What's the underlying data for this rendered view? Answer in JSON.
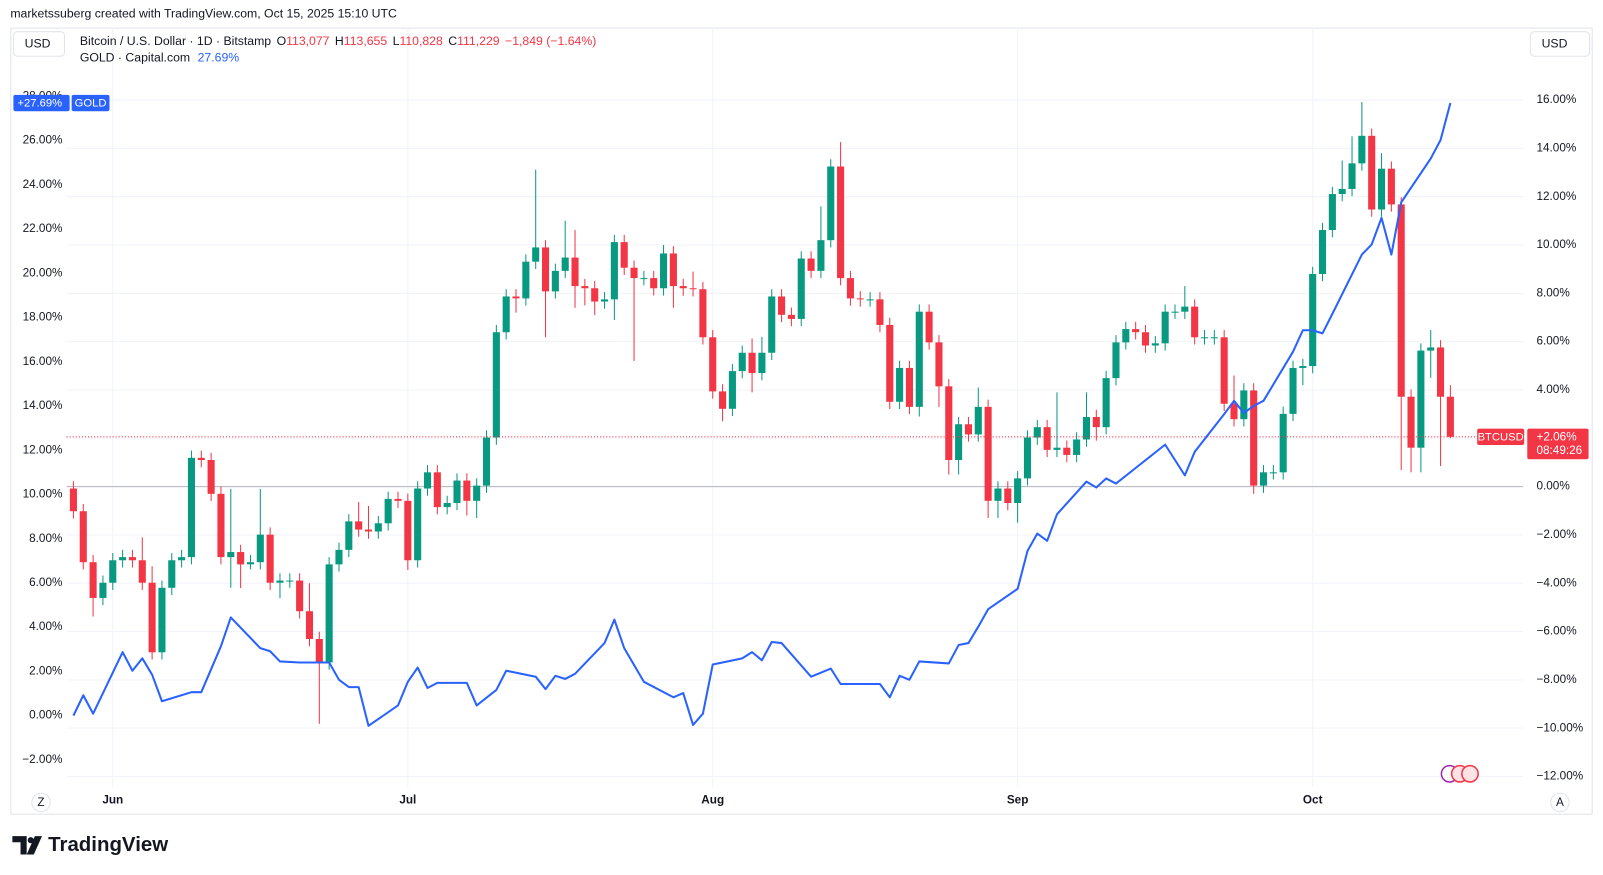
{
  "header": {
    "text": "marketssuberg created with TradingView.com, Oct 15, 2025 15:10 UTC"
  },
  "toolbar": {
    "left_currency": "USD",
    "right_currency": "USD",
    "zoom_button": "Z",
    "auto_button": "A"
  },
  "footer": {
    "logo": "TradingView"
  },
  "chart_data": {
    "type": "candlestick",
    "legend": {
      "title": "Bitcoin / U.S. Dollar · 1D · Bitstamp",
      "ohlc": [
        {
          "key": "O",
          "text": "113,077"
        },
        {
          "key": "H",
          "text": "113,655"
        },
        {
          "key": "L",
          "text": "110,828"
        },
        {
          "key": "C",
          "text": "111,229"
        }
      ],
      "change": "−1,849 (−1.64%)",
      "gold_title": "GOLD · Capital.com",
      "gold_value": "27.69%"
    },
    "xlim": [
      -0.7,
      147.4
    ],
    "xticks": [
      {
        "value": 4,
        "label": "Jun"
      },
      {
        "value": 34,
        "label": "Jul"
      },
      {
        "value": 65,
        "label": "Aug"
      },
      {
        "value": 96,
        "label": "Sep"
      },
      {
        "value": 126,
        "label": "Oct"
      }
    ],
    "ylim": [
      -12.44,
      19.0
    ],
    "yticks": [
      {
        "value": 16,
        "label": "16.00%"
      },
      {
        "value": 14,
        "label": "14.00%"
      },
      {
        "value": 12,
        "label": "12.00%"
      },
      {
        "value": 10,
        "label": "10.00%"
      },
      {
        "value": 8,
        "label": "8.00%"
      },
      {
        "value": 6,
        "label": "6.00%"
      },
      {
        "value": 4,
        "label": "4.00%"
      },
      {
        "value": 2,
        "label": "2.00%"
      },
      {
        "value": 0,
        "label": "0.00%"
      },
      {
        "value": -2,
        "label": "−2.00%"
      },
      {
        "value": -4,
        "label": "−4.00%"
      },
      {
        "value": -6,
        "label": "−6.00%"
      },
      {
        "value": -8,
        "label": "−8.00%"
      },
      {
        "value": -10,
        "label": "−10.00%"
      },
      {
        "value": -12,
        "label": "−12.00%"
      }
    ],
    "y2lim": [
      -3.23,
      31.1
    ],
    "y2ticks": [
      {
        "value": 28,
        "label": "28.00%"
      },
      {
        "value": 26,
        "label": "26.00%"
      },
      {
        "value": 24,
        "label": "24.00%"
      },
      {
        "value": 22,
        "label": "22.00%"
      },
      {
        "value": 20,
        "label": "20.00%"
      },
      {
        "value": 18,
        "label": "18.00%"
      },
      {
        "value": 16,
        "label": "16.00%"
      },
      {
        "value": 14,
        "label": "14.00%"
      },
      {
        "value": 12,
        "label": "12.00%"
      },
      {
        "value": 10,
        "label": "10.00%"
      },
      {
        "value": 8,
        "label": "8.00%"
      },
      {
        "value": 6,
        "label": "6.00%"
      },
      {
        "value": 4,
        "label": "4.00%"
      },
      {
        "value": 2,
        "label": "2.00%"
      },
      {
        "value": 0,
        "label": "0.00%"
      },
      {
        "value": -2,
        "label": "−2.00%"
      }
    ],
    "grid": true,
    "series": [
      {
        "name": "BTCUSD",
        "type": "candlestick",
        "up_color": "#089981",
        "down_color": "#f23645",
        "value_label": "+2.06%",
        "countdown": "08:49:26",
        "x": [
          0,
          1,
          2,
          3,
          4,
          5,
          6,
          7,
          8,
          9,
          10,
          11,
          12,
          13,
          14,
          15,
          16,
          17,
          18,
          19,
          20,
          21,
          22,
          23,
          24,
          25,
          26,
          27,
          28,
          29,
          30,
          31,
          32,
          33,
          34,
          35,
          36,
          37,
          38,
          39,
          40,
          41,
          42,
          43,
          44,
          45,
          46,
          47,
          48,
          49,
          50,
          51,
          52,
          53,
          54,
          55,
          56,
          57,
          58,
          59,
          60,
          61,
          62,
          63,
          64,
          65,
          66,
          67,
          68,
          69,
          70,
          71,
          72,
          73,
          74,
          75,
          76,
          77,
          78,
          79,
          80,
          81,
          82,
          83,
          84,
          85,
          86,
          87,
          88,
          89,
          90,
          91,
          92,
          93,
          94,
          95,
          96,
          97,
          98,
          99,
          100,
          101,
          102,
          103,
          104,
          105,
          106,
          107,
          108,
          109,
          110,
          111,
          112,
          113,
          114,
          115,
          116,
          117,
          118,
          119,
          120,
          121,
          122,
          123,
          124,
          125,
          126,
          127,
          128,
          129,
          130,
          131,
          132,
          133,
          134,
          135,
          136,
          137,
          138,
          139,
          140
        ],
        "open": [
          -0.08,
          -1.02,
          -3.13,
          -4.61,
          -3.98,
          -3.05,
          -2.92,
          -3.05,
          -3.98,
          -6.86,
          -4.19,
          -3.05,
          -2.92,
          1.19,
          1.1,
          -0.3,
          -2.92,
          -2.71,
          -3.22,
          -3.13,
          -1.99,
          -3.98,
          -3.89,
          -3.89,
          -5.16,
          -6.31,
          -7.28,
          -3.22,
          -2.62,
          -1.44,
          -1.78,
          -1.86,
          -1.52,
          -0.51,
          -0.59,
          -3.05,
          -0.08,
          0.59,
          -0.85,
          -0.68,
          0.25,
          -0.59,
          0.04,
          2.03,
          6.39,
          7.87,
          7.79,
          9.31,
          9.9,
          8.08,
          8.93,
          9.48,
          8.3,
          8.21,
          7.66,
          7.75,
          10.12,
          9.06,
          8.63,
          8.63,
          8.21,
          9.65,
          8.3,
          8.21,
          8.17,
          6.18,
          3.94,
          3.22,
          4.78,
          5.54,
          4.7,
          5.54,
          7.87,
          7.11,
          6.94,
          9.44,
          8.93,
          10.2,
          13.25,
          8.63,
          7.79,
          7.75,
          7.75,
          6.69,
          3.51,
          4.91,
          3.3,
          7.24,
          5.97,
          4.15,
          1.1,
          2.58,
          2.16,
          3.3,
          -0.59,
          -0.08,
          -0.68,
          0.34,
          2.03,
          2.46,
          1.52,
          1.61,
          1.31,
          1.95,
          2.88,
          2.46,
          4.49,
          5.97,
          6.52,
          6.39,
          5.84,
          5.93,
          7.24,
          7.24,
          7.45,
          6.18,
          6.18,
          6.18,
          3.43,
          2.79,
          3.98,
          0.04,
          0.59,
          0.59,
          3.01,
          4.91,
          4.99,
          8.8,
          10.62,
          12.11,
          12.32,
          13.38,
          14.52,
          11.47,
          13.16,
          11.68,
          3.72,
          1.61,
          5.63,
          5.76,
          3.72
        ],
        "high": [
          0.22,
          -0.72,
          -2.83,
          -3.68,
          -2.75,
          -2.62,
          -2.62,
          -2.1,
          -3.3,
          -3.89,
          -2.75,
          -2.62,
          1.49,
          1.49,
          1.4,
          0,
          -0.1,
          -2.41,
          -2.83,
          -0.1,
          -1.69,
          -3.59,
          -3.59,
          -3.59,
          -4.0,
          -6.01,
          -2.92,
          -2.32,
          -1.14,
          -0.64,
          -0.8,
          -1.22,
          -0.21,
          -0.21,
          -0.29,
          0.22,
          0.89,
          0.89,
          -0.38,
          0.55,
          0.55,
          0.34,
          2.33,
          6.69,
          8.17,
          8.17,
          9.61,
          13.12,
          10.2,
          9.23,
          11.01,
          10.62,
          8.6,
          8.51,
          8.05,
          10.42,
          10.42,
          9.36,
          8.93,
          8.93,
          10.0,
          9.95,
          8.6,
          8.9,
          8.47,
          6.48,
          4.24,
          5.08,
          5.84,
          6.13,
          6.2,
          8.17,
          8.17,
          7.41,
          9.74,
          9.74,
          11.6,
          13.55,
          14.26,
          8.93,
          8.09,
          8.05,
          8.05,
          6.99,
          5.21,
          5.21,
          7.54,
          7.54,
          6.27,
          4.45,
          2.88,
          2.88,
          4.1,
          3.6,
          0.22,
          0.22,
          0.64,
          2.33,
          2.76,
          2.76,
          3.9,
          1.91,
          2.25,
          3.9,
          3.18,
          4.79,
          6.27,
          6.82,
          6.82,
          6.69,
          6.23,
          7.54,
          7.54,
          8.3,
          7.75,
          6.48,
          6.48,
          6.48,
          4.6,
          4.28,
          4.28,
          0.89,
          0.89,
          3.31,
          5.21,
          5.29,
          9.1,
          10.92,
          12.41,
          13.5,
          14.5,
          15.92,
          14.82,
          13.8,
          13.46,
          11.98,
          4.02,
          5.93,
          6.48,
          6.06,
          4.2
        ],
        "low": [
          -1.32,
          -3.43,
          -5.38,
          -4.91,
          -4.28,
          -3.35,
          -3.35,
          -4.28,
          -7.16,
          -7.16,
          -4.49,
          -3.35,
          -3.22,
          0.8,
          -0.6,
          -3.22,
          -4.19,
          -4.2,
          -3.43,
          -3.43,
          -4.28,
          -4.62,
          -4.19,
          -5.46,
          -6.61,
          -9.82,
          -7.58,
          -3.52,
          -2.92,
          -2.08,
          -2.16,
          -2.16,
          -1.82,
          -0.89,
          -3.45,
          -3.35,
          -0.38,
          -1.15,
          -1.15,
          -0.98,
          -1.2,
          -1.3,
          -0.26,
          1.73,
          6.09,
          7.2,
          7.49,
          9.01,
          6.18,
          7.78,
          8.63,
          7.4,
          7.5,
          7.1,
          7.36,
          6.9,
          8.76,
          5.2,
          8.33,
          7.91,
          7.91,
          7.4,
          7.9,
          7.87,
          5.88,
          3.64,
          2.7,
          2.92,
          4.48,
          3.9,
          4.4,
          5.24,
          6.81,
          6.64,
          6.64,
          8.63,
          8.63,
          9.9,
          8.33,
          7.49,
          7.45,
          7.45,
          6.39,
          3.21,
          3.21,
          3.0,
          2.9,
          5.67,
          3.3,
          0.5,
          0.5,
          1.86,
          1.86,
          -1.3,
          -1.3,
          -0.98,
          -1.5,
          0.04,
          1.73,
          1.22,
          1.22,
          1.01,
          1.01,
          1.65,
          1.9,
          2.16,
          4.19,
          5.67,
          6.09,
          5.54,
          5.54,
          5.63,
          6.94,
          6.94,
          5.88,
          5.88,
          5.88,
          3.13,
          2.49,
          2.49,
          -0.3,
          -0.26,
          0.29,
          0.29,
          2.71,
          4.2,
          4.69,
          8.5,
          10.32,
          11.81,
          12.02,
          13.08,
          11.17,
          11.17,
          11.38,
          0.68,
          0.59,
          0.59,
          4.5,
          0.85,
          2.0
        ],
        "close": [
          -1.02,
          -3.13,
          -4.61,
          -3.98,
          -3.05,
          -2.92,
          -3.05,
          -3.98,
          -6.86,
          -4.19,
          -3.05,
          -2.92,
          1.19,
          1.1,
          -0.3,
          -2.92,
          -2.71,
          -3.22,
          -3.13,
          -1.99,
          -3.98,
          -3.89,
          -3.89,
          -5.16,
          -6.31,
          -7.28,
          -3.22,
          -2.62,
          -1.44,
          -1.78,
          -1.86,
          -1.52,
          -0.51,
          -0.59,
          -3.05,
          -0.08,
          0.59,
          -0.85,
          -0.68,
          0.25,
          -0.59,
          0.04,
          2.03,
          6.39,
          7.87,
          7.79,
          9.31,
          9.9,
          8.08,
          8.93,
          9.48,
          8.3,
          8.21,
          7.66,
          7.75,
          10.12,
          9.06,
          8.63,
          8.63,
          8.21,
          9.65,
          8.3,
          8.21,
          8.17,
          6.18,
          3.94,
          3.22,
          4.78,
          5.54,
          4.7,
          5.54,
          7.87,
          7.11,
          6.94,
          9.44,
          8.93,
          10.2,
          13.25,
          8.63,
          7.79,
          7.75,
          7.75,
          6.69,
          3.51,
          4.91,
          3.3,
          7.24,
          5.97,
          4.15,
          1.1,
          2.58,
          2.16,
          3.3,
          -0.59,
          -0.08,
          -0.68,
          0.34,
          2.03,
          2.46,
          1.52,
          1.61,
          1.31,
          1.95,
          2.88,
          2.46,
          4.49,
          5.97,
          6.52,
          6.39,
          5.84,
          5.93,
          7.24,
          7.24,
          7.45,
          6.18,
          6.18,
          6.18,
          3.43,
          2.79,
          3.98,
          0.04,
          0.59,
          0.59,
          3.01,
          4.91,
          4.99,
          8.8,
          10.62,
          12.11,
          12.32,
          13.38,
          14.52,
          11.47,
          13.16,
          11.68,
          3.72,
          1.61,
          5.63,
          5.76,
          3.72,
          2.06
        ]
      },
      {
        "name": "GOLD",
        "type": "line",
        "axis": "y2",
        "color": "#2962ff",
        "value_label": "+27.69%",
        "x": [
          0,
          1,
          2,
          5,
          6,
          7,
          8,
          9,
          12,
          13,
          15,
          16,
          19,
          20,
          21,
          23,
          24,
          25,
          26,
          27,
          28,
          29,
          30,
          33,
          34,
          35,
          36,
          37,
          40,
          41,
          43,
          44,
          47,
          48,
          49,
          50,
          51,
          54,
          55,
          56,
          58,
          61,
          62,
          63,
          64,
          65,
          68,
          69,
          70,
          71,
          72,
          75,
          76,
          77,
          78,
          82,
          83,
          84,
          85,
          86,
          89,
          90,
          91,
          92,
          93,
          96,
          97,
          98,
          99,
          100,
          103,
          104,
          105,
          106,
          111,
          113,
          114,
          117,
          118,
          119,
          120,
          121,
          124,
          125,
          126,
          127,
          128,
          131,
          132,
          133,
          134,
          135,
          138,
          139,
          140
        ],
        "values": [
          0,
          0.92,
          0.09,
          2.87,
          2.03,
          2.59,
          1.85,
          0.65,
          1.06,
          1.06,
          3.14,
          4.44,
          3.05,
          2.91,
          2.45,
          2.4,
          2.4,
          2.4,
          2.4,
          1.62,
          1.29,
          1.29,
          -0.46,
          0.46,
          1.53,
          2.17,
          1.25,
          1.48,
          1.48,
          0.46,
          1.16,
          2.03,
          1.76,
          1.2,
          1.8,
          1.66,
          1.89,
          3.28,
          4.34,
          3.05,
          1.53,
          0.83,
          1.02,
          -0.42,
          0.09,
          2.31,
          2.59,
          2.87,
          2.5,
          3.33,
          3.28,
          1.76,
          1.94,
          2.13,
          1.43,
          1.43,
          0.83,
          1.8,
          1.62,
          2.45,
          2.36,
          3.19,
          3.28,
          4.02,
          4.81,
          5.73,
          7.44,
          8.23,
          7.9,
          9.1,
          10.58,
          10.31,
          10.72,
          10.49,
          12.25,
          10.86,
          11.92,
          13.63,
          14.23,
          13.68,
          14.0,
          14.23,
          16.45,
          17.42,
          17.42,
          17.28,
          18.16,
          20.84,
          21.3,
          22.5,
          20.84,
          23.2,
          25.18,
          26.02,
          27.69
        ]
      }
    ]
  }
}
